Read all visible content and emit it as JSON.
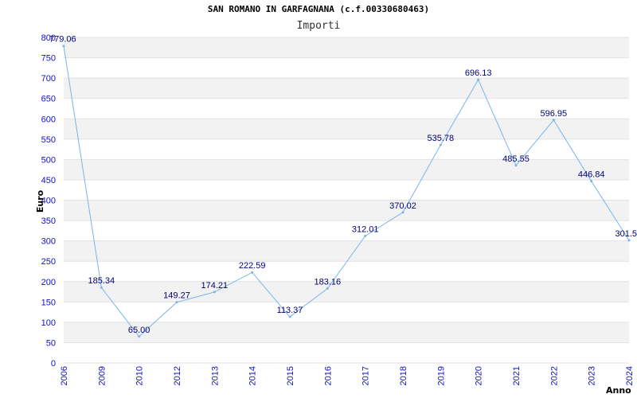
{
  "chart_data": {
    "type": "line",
    "title": "SAN ROMANO IN GARFAGNANA (c.f.00330680463)",
    "subtitle": "Importi",
    "xlabel": "Anno",
    "ylabel": "Euro",
    "categories": [
      "2006",
      "2009",
      "2010",
      "2012",
      "2013",
      "2014",
      "2015",
      "2016",
      "2017",
      "2018",
      "2019",
      "2020",
      "2021",
      "2022",
      "2023",
      "2024"
    ],
    "series": [
      {
        "values": [
          779.06,
          185.34,
          65.0,
          149.27,
          174.21,
          222.59,
          113.37,
          183.16,
          312.01,
          370.02,
          535.78,
          696.13,
          485.55,
          596.95,
          446.84,
          301.5
        ],
        "labels": [
          "779.06",
          "185.34",
          "65.00",
          "149.27",
          "174.21",
          "222.59",
          "113.37",
          "183.16",
          "312.01",
          "370.02",
          "535.78",
          "696.13",
          "485.55",
          "596.95",
          "446.84",
          "301.5"
        ]
      }
    ],
    "ylim": [
      0,
      800
    ],
    "yticks": [
      "0",
      "50",
      "100",
      "150",
      "200",
      "250",
      "300",
      "350",
      "400",
      "450",
      "500",
      "550",
      "600",
      "650",
      "700",
      "750",
      "800"
    ],
    "grid": true,
    "colors": {
      "line": "#7ab4ec",
      "band": "#f2f2f2",
      "tick": "#1010c0",
      "label": "#00007a"
    }
  }
}
